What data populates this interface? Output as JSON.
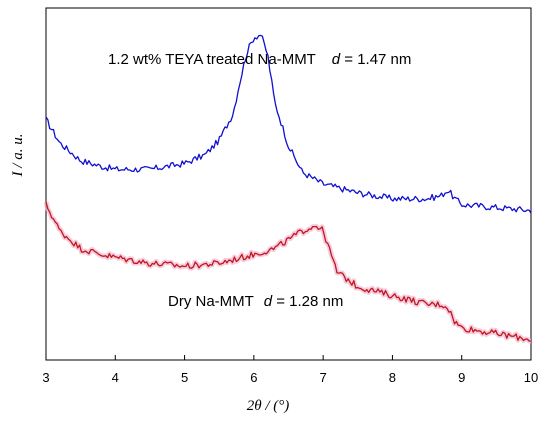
{
  "chart_data": {
    "type": "line",
    "xlabel": "2θ / (°)",
    "ylabel": "I / a. u.",
    "xlim": [
      3,
      10
    ],
    "x_ticks": [
      "3",
      "4",
      "5",
      "6",
      "7",
      "8",
      "9",
      "10"
    ],
    "grid": false,
    "legend": "none",
    "annotations": [
      {
        "text": "1.2 wt% TEYA treated Na-MMT",
        "d_label": "d",
        "d_value": " = 1.47 nm",
        "series": "upper"
      },
      {
        "text": "Dry  Na-MMT",
        "d_label": "d",
        "d_value": " = 1.28 nm",
        "series": "lower"
      }
    ],
    "series": [
      {
        "color": "#1010d0",
        "x": [
          3.0,
          3.2,
          3.5,
          3.8,
          4.0,
          4.5,
          5.0,
          5.3,
          5.5,
          5.7,
          5.8,
          5.9,
          6.0,
          6.1,
          6.2,
          6.3,
          6.5,
          6.7,
          7.0,
          7.5,
          8.0,
          8.5,
          8.7,
          8.8,
          8.9,
          9.0,
          9.5,
          10.0
        ],
        "y": [
          0.82,
          0.74,
          0.68,
          0.66,
          0.65,
          0.65,
          0.67,
          0.7,
          0.75,
          0.84,
          0.95,
          1.05,
          1.1,
          1.11,
          1.04,
          0.88,
          0.73,
          0.64,
          0.6,
          0.57,
          0.55,
          0.55,
          0.56,
          0.58,
          0.55,
          0.53,
          0.52,
          0.51
        ]
      },
      {
        "color": "#c01818",
        "x": [
          3.0,
          3.2,
          3.5,
          3.8,
          4.0,
          4.5,
          5.0,
          5.5,
          6.0,
          6.3,
          6.5,
          6.7,
          6.9,
          7.0,
          7.1,
          7.2,
          7.5,
          8.0,
          8.5,
          8.7,
          8.8,
          8.9,
          9.0,
          9.5,
          10.0
        ],
        "y": [
          0.53,
          0.44,
          0.38,
          0.36,
          0.35,
          0.33,
          0.32,
          0.33,
          0.36,
          0.38,
          0.41,
          0.44,
          0.46,
          0.44,
          0.37,
          0.3,
          0.25,
          0.22,
          0.19,
          0.19,
          0.18,
          0.13,
          0.11,
          0.09,
          0.07
        ]
      }
    ]
  }
}
